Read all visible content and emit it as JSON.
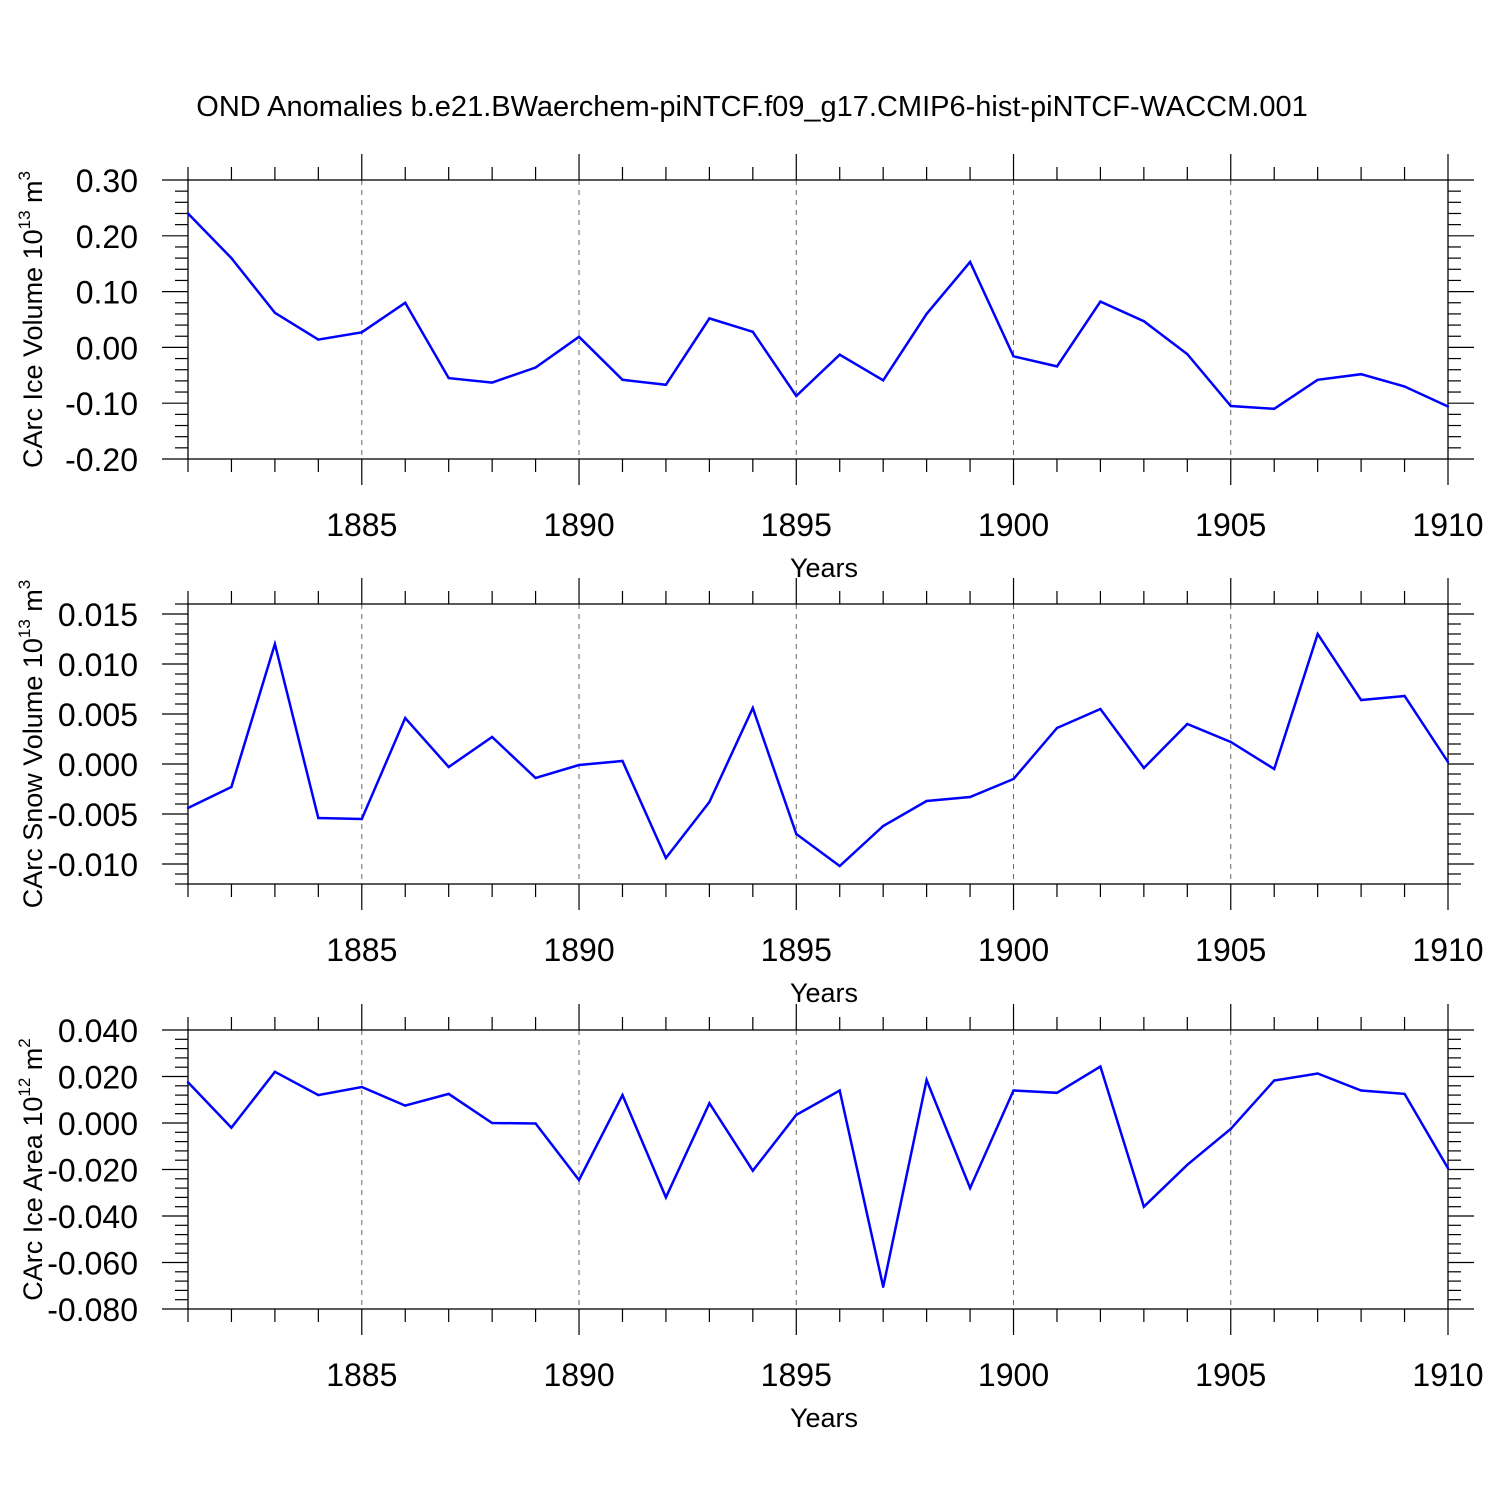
{
  "figure_title": "OND Anomalies b.e21.BWaerchem-piNTCF.f09_g17.CMIP6-hist-piNTCF-WACCM.001",
  "colors": {
    "line": "#0000ff",
    "axis": "#000000",
    "grid": "#666666",
    "background": "#ffffff"
  },
  "chart_data": [
    {
      "type": "line",
      "title": "",
      "xlabel": "Years",
      "ylabel": "CArc Ice Volume 10",
      "ylabel_exp": "13",
      "ylabel_unit": " m",
      "ylabel_unit_exp": "3",
      "xlim": [
        1881,
        1910
      ],
      "ylim": [
        -0.2,
        0.3
      ],
      "x_ticks": [
        1885,
        1890,
        1895,
        1900,
        1905,
        1910
      ],
      "x_tick_labels": [
        "1885",
        "1890",
        "1895",
        "1900",
        "1905",
        "1910"
      ],
      "y_ticks": [
        0.3,
        0.2,
        0.1,
        0.0,
        -0.1,
        -0.2
      ],
      "y_tick_labels": [
        "0.30",
        "0.20",
        "0.10",
        "0.00",
        "-0.10",
        "-0.20"
      ],
      "grid": "vertical dashed at major x ticks",
      "series": [
        {
          "name": "Ice Volume",
          "x": [
            1881,
            1882,
            1883,
            1884,
            1885,
            1886,
            1887,
            1888,
            1889,
            1890,
            1891,
            1892,
            1893,
            1894,
            1895,
            1896,
            1897,
            1898,
            1899,
            1900,
            1901,
            1902,
            1903,
            1904,
            1905,
            1906,
            1907,
            1908,
            1909,
            1910
          ],
          "values": [
            0.24,
            0.16,
            0.062,
            0.014,
            0.027,
            0.08,
            -0.055,
            -0.063,
            -0.036,
            0.019,
            -0.058,
            -0.067,
            0.052,
            0.028,
            -0.087,
            -0.013,
            -0.059,
            0.06,
            0.153,
            -0.016,
            -0.034,
            0.082,
            0.047,
            -0.012,
            -0.105,
            -0.11,
            -0.058,
            -0.048,
            -0.07,
            -0.106
          ]
        }
      ]
    },
    {
      "type": "line",
      "title": "",
      "xlabel": "Years",
      "ylabel": "CArc Snow Volume 10",
      "ylabel_exp": "13",
      "ylabel_unit": " m",
      "ylabel_unit_exp": "3",
      "xlim": [
        1881,
        1910
      ],
      "ylim": [
        -0.012,
        0.016
      ],
      "x_ticks": [
        1885,
        1890,
        1895,
        1900,
        1905,
        1910
      ],
      "x_tick_labels": [
        "1885",
        "1890",
        "1895",
        "1900",
        "1905",
        "1910"
      ],
      "y_ticks": [
        0.015,
        0.01,
        0.005,
        0.0,
        -0.005,
        -0.01
      ],
      "y_tick_labels": [
        "0.015",
        "0.010",
        "0.005",
        "0.000",
        "-0.005",
        "-0.010"
      ],
      "grid": "vertical dashed at major x ticks",
      "series": [
        {
          "name": "Snow Volume",
          "x": [
            1881,
            1882,
            1883,
            1884,
            1885,
            1886,
            1887,
            1888,
            1889,
            1890,
            1891,
            1892,
            1893,
            1894,
            1895,
            1896,
            1897,
            1898,
            1899,
            1900,
            1901,
            1902,
            1903,
            1904,
            1905,
            1906,
            1907,
            1908,
            1909,
            1910
          ],
          "values": [
            -0.0044,
            -0.0023,
            0.012,
            -0.0054,
            -0.0055,
            0.0046,
            -0.0003,
            0.0027,
            -0.0014,
            -0.0001,
            0.0003,
            -0.0094,
            -0.0038,
            0.0056,
            -0.007,
            -0.0102,
            -0.0062,
            -0.0037,
            -0.0033,
            -0.0015,
            0.0036,
            0.0055,
            -0.0004,
            0.004,
            0.0022,
            -0.0005,
            0.013,
            0.0064,
            0.0068,
            0.0002
          ]
        }
      ]
    },
    {
      "type": "line",
      "title": "",
      "xlabel": "Years",
      "ylabel": "CArc Ice Area 10",
      "ylabel_exp": "12",
      "ylabel_unit": " m",
      "ylabel_unit_exp": "2",
      "xlim": [
        1881,
        1910
      ],
      "ylim": [
        -0.08,
        0.04
      ],
      "x_ticks": [
        1885,
        1890,
        1895,
        1900,
        1905,
        1910
      ],
      "x_tick_labels": [
        "1885",
        "1890",
        "1895",
        "1900",
        "1905",
        "1910"
      ],
      "y_ticks": [
        0.04,
        0.02,
        0.0,
        -0.02,
        -0.04,
        -0.06,
        -0.08
      ],
      "y_tick_labels": [
        "0.040",
        "0.020",
        "0.000",
        "-0.020",
        "-0.040",
        "-0.060",
        "-0.080"
      ],
      "grid": "vertical dashed at major x ticks",
      "series": [
        {
          "name": "Ice Area",
          "x": [
            1881,
            1882,
            1883,
            1884,
            1885,
            1886,
            1887,
            1888,
            1889,
            1890,
            1891,
            1892,
            1893,
            1894,
            1895,
            1896,
            1897,
            1898,
            1899,
            1900,
            1901,
            1902,
            1903,
            1904,
            1905,
            1906,
            1907,
            1908,
            1909,
            1910
          ],
          "values": [
            0.0175,
            -0.002,
            0.022,
            0.012,
            0.0155,
            0.0075,
            0.0125,
            0.0,
            -0.0002,
            -0.0245,
            0.012,
            -0.032,
            0.0085,
            -0.0205,
            0.0035,
            0.014,
            -0.0705,
            0.0185,
            -0.028,
            0.014,
            0.013,
            0.0243,
            -0.036,
            -0.018,
            -0.0025,
            0.0183,
            0.0213,
            0.014,
            0.0125,
            -0.0195
          ]
        }
      ]
    }
  ]
}
